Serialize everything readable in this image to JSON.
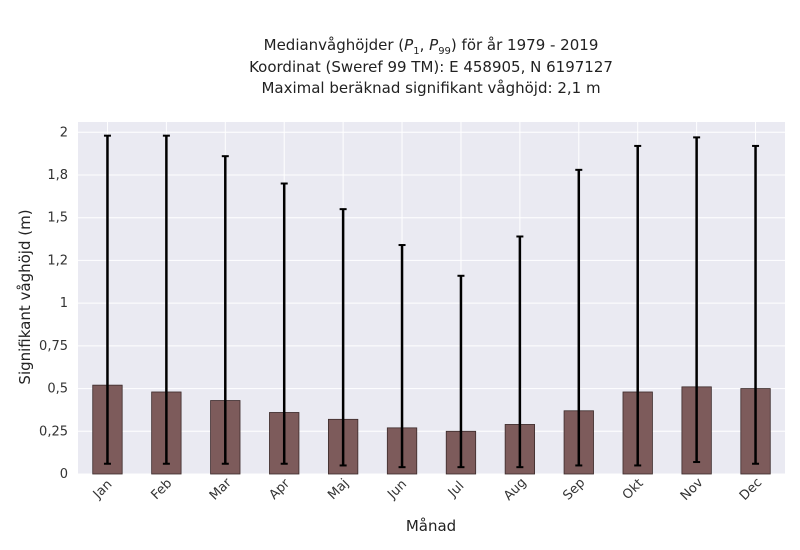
{
  "title": {
    "line1_prefix": "Medianvåghöjder (",
    "line1_p": "P",
    "line1_s1": "1",
    "line1_sep": ", ",
    "line1_s2": "99",
    "line1_suffix": ") för år 1979 - 2019",
    "line2": "Koordinat (Sweref 99 TM): E 458905, N 6197127",
    "line3": "Maximal beräknad signifikant våghöjd: 2,1 m"
  },
  "chart_data": {
    "type": "bar",
    "title": "Medianvåghöjder (P1, P99) för år 1979 - 2019",
    "xlabel": "Månad",
    "ylabel": "Signifikant våghöjd (m)",
    "categories": [
      "Jan",
      "Feb",
      "Mar",
      "Apr",
      "Maj",
      "Jun",
      "Jul",
      "Aug",
      "Sep",
      "Okt",
      "Nov",
      "Dec"
    ],
    "values": [
      0.52,
      0.48,
      0.43,
      0.36,
      0.32,
      0.27,
      0.25,
      0.29,
      0.37,
      0.48,
      0.51,
      0.5
    ],
    "p1": [
      0.06,
      0.06,
      0.06,
      0.06,
      0.05,
      0.04,
      0.04,
      0.04,
      0.05,
      0.05,
      0.07,
      0.06
    ],
    "p99": [
      1.98,
      1.98,
      1.86,
      1.7,
      1.55,
      1.34,
      1.16,
      1.39,
      1.78,
      1.92,
      1.97,
      1.92
    ],
    "ylim": [
      0,
      2.06
    ],
    "yticks": [
      0,
      0.25,
      0.5,
      0.75,
      1,
      1.25,
      1.5,
      1.75,
      2
    ],
    "ytick_labels": [
      "0",
      "0,25",
      "0,5",
      "0,75",
      "1",
      "1,2",
      "1,5",
      "1,8",
      "2"
    ],
    "grid": true,
    "colors": {
      "bar": "#7d5b5b",
      "bar_edge": "#3b2a2a",
      "errorbar": "#000000",
      "plot_bg": "#eaeaf2",
      "grid": "#ffffff"
    }
  }
}
